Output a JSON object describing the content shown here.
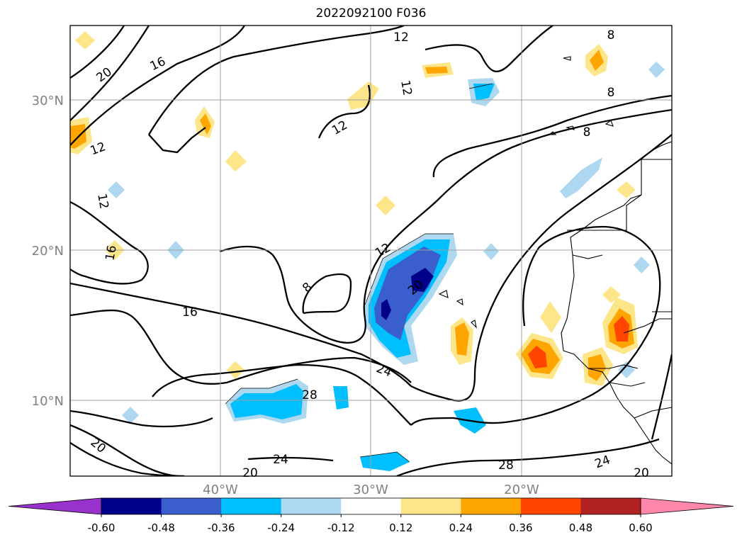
{
  "title": "2022092100 F036",
  "map": {
    "lat_ticks": [
      "30°N",
      "20°N",
      "10°N"
    ],
    "lon_ticks": [
      "40°W",
      "30°W",
      "20°W"
    ],
    "gridlines": true
  },
  "contour_labels": [
    "20",
    "16",
    "12",
    "8",
    "12",
    "12",
    "12",
    "8",
    "8",
    "12",
    "12",
    "16",
    "16",
    "20",
    "8",
    "24",
    "28",
    "20",
    "24",
    "20",
    "28",
    "24",
    "20"
  ],
  "colorbar": {
    "labels": [
      "-0.60",
      "-0.48",
      "-0.36",
      "-0.24",
      "-0.12",
      "0.12",
      "0.24",
      "0.36",
      "0.48",
      "0.60"
    ],
    "colors": [
      "#9932cc",
      "#00008b",
      "#3a5fcd",
      "#00bfff",
      "#add8f0",
      "#ffffff",
      "#fde68a",
      "#ffa500",
      "#ff4500",
      "#b22222",
      "#ff88aa"
    ]
  }
}
